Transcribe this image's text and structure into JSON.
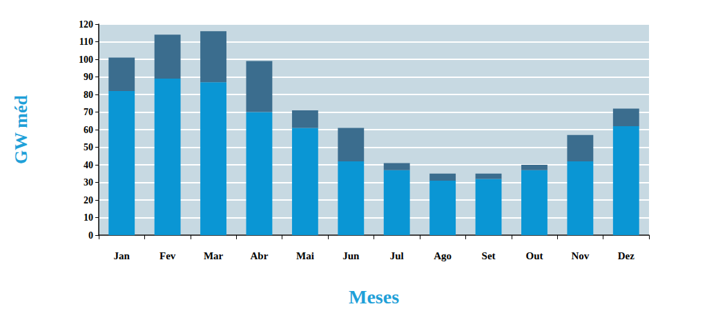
{
  "chart_data": {
    "type": "bar",
    "stacked": true,
    "grid": true,
    "x_label": "Meses",
    "y_label": "GW méd",
    "categories": [
      "Jan",
      "Fev",
      "Mar",
      "Abr",
      "Mai",
      "Jun",
      "Jul",
      "Ago",
      "Set",
      "Out",
      "Nov",
      "Dez"
    ],
    "series": [
      {
        "color": "#0a96d4",
        "values": [
          82,
          89,
          87,
          70,
          61,
          42,
          37,
          31,
          32,
          37,
          42,
          62
        ]
      },
      {
        "color": "#3b6d8e",
        "values": [
          19,
          25,
          29,
          29,
          10,
          19,
          4,
          4,
          3,
          3,
          15,
          10
        ]
      }
    ],
    "ylim": [
      0,
      120
    ],
    "yticks": [
      0,
      10,
      20,
      30,
      40,
      50,
      60,
      70,
      80,
      90,
      100,
      110,
      120
    ]
  }
}
